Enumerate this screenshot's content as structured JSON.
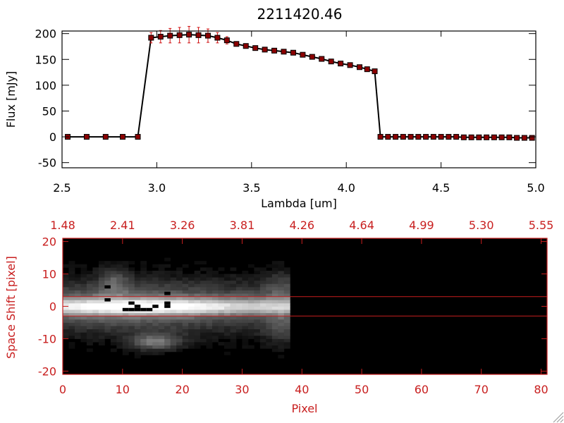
{
  "colors": {
    "accent_red": "#c81e1e",
    "black": "#000000",
    "spectrum_line": "#000000",
    "point_fill": "#8b0000",
    "error_bar": "#d01010"
  },
  "chart_data": [
    {
      "type": "line",
      "title": "2211420.46",
      "xlabel": "Lambda [um]",
      "ylabel": "Flux [mJy]",
      "xlim": [
        2.5,
        5.0
      ],
      "ylim": [
        -60,
        205
      ],
      "xticks": [
        "2.5",
        "3.0",
        "3.5",
        "4.0",
        "4.5",
        "5.0"
      ],
      "xtick_values": [
        2.5,
        3.0,
        3.5,
        4.0,
        4.5,
        5.0
      ],
      "yticks": [
        "-50",
        "0",
        "50",
        "100",
        "150",
        "200"
      ],
      "ytick_values": [
        -50,
        0,
        50,
        100,
        150,
        200
      ],
      "grid": false,
      "series": [
        {
          "x": [
            2.53,
            2.63,
            2.73,
            2.82,
            2.9,
            2.97,
            3.02,
            3.07,
            3.12,
            3.17,
            3.22,
            3.27,
            3.32,
            3.37,
            3.42,
            3.47,
            3.52,
            3.57,
            3.62,
            3.67,
            3.72,
            3.77,
            3.82,
            3.87,
            3.92,
            3.97,
            4.02,
            4.07,
            4.11,
            4.15,
            4.18,
            4.22,
            4.26,
            4.3,
            4.34,
            4.38,
            4.42,
            4.46,
            4.5,
            4.54,
            4.58,
            4.62,
            4.66,
            4.7,
            4.74,
            4.78,
            4.82,
            4.86,
            4.9,
            4.94,
            4.98
          ],
          "y": [
            0,
            0,
            0,
            0,
            0,
            192,
            194,
            196,
            197,
            198,
            197,
            196,
            192,
            187,
            180,
            176,
            172,
            169,
            167,
            165,
            163,
            159,
            155,
            151,
            146,
            142,
            139,
            135,
            131,
            127,
            0,
            0,
            0,
            0,
            0,
            0,
            0,
            0,
            0,
            0,
            0,
            -1,
            -1,
            -1,
            -1,
            -1,
            -1,
            -1,
            -2,
            -2,
            -2
          ],
          "yerr": [
            0,
            0,
            0,
            0,
            0,
            10,
            12,
            14,
            15,
            16,
            15,
            13,
            10,
            7,
            4,
            3,
            3,
            3,
            3,
            3,
            3,
            3,
            3,
            3,
            3,
            3,
            3,
            3,
            3,
            3,
            2,
            2,
            2,
            2,
            2,
            2,
            2,
            2,
            2,
            2,
            2,
            2,
            2,
            2,
            2,
            2,
            2,
            2,
            2,
            2,
            2
          ]
        }
      ]
    },
    {
      "type": "heatmap",
      "xlabel": "Pixel",
      "ylabel": "Space Shift [pixel]",
      "xlim": [
        0,
        81
      ],
      "ylim": [
        -21,
        21
      ],
      "xticks": [
        "0",
        "10",
        "20",
        "30",
        "40",
        "50",
        "60",
        "70",
        "80"
      ],
      "xtick_values": [
        0,
        10,
        20,
        30,
        40,
        50,
        60,
        70,
        80
      ],
      "yticks": [
        "-20",
        "-10",
        "0",
        "10",
        "20"
      ],
      "ytick_values": [
        -20,
        -10,
        0,
        10,
        20
      ],
      "top_axis_ticks": [
        "1.48",
        "2.41",
        "3.26",
        "3.81",
        "4.26",
        "4.64",
        "4.99",
        "5.30",
        "5.55"
      ],
      "top_axis_tick_values": [
        0,
        10,
        20,
        30,
        40,
        50,
        60,
        70,
        80
      ],
      "extraction_lines_y": [
        3,
        -3
      ],
      "signal_extent_pixels": [
        0,
        38
      ],
      "grid": false
    }
  ]
}
